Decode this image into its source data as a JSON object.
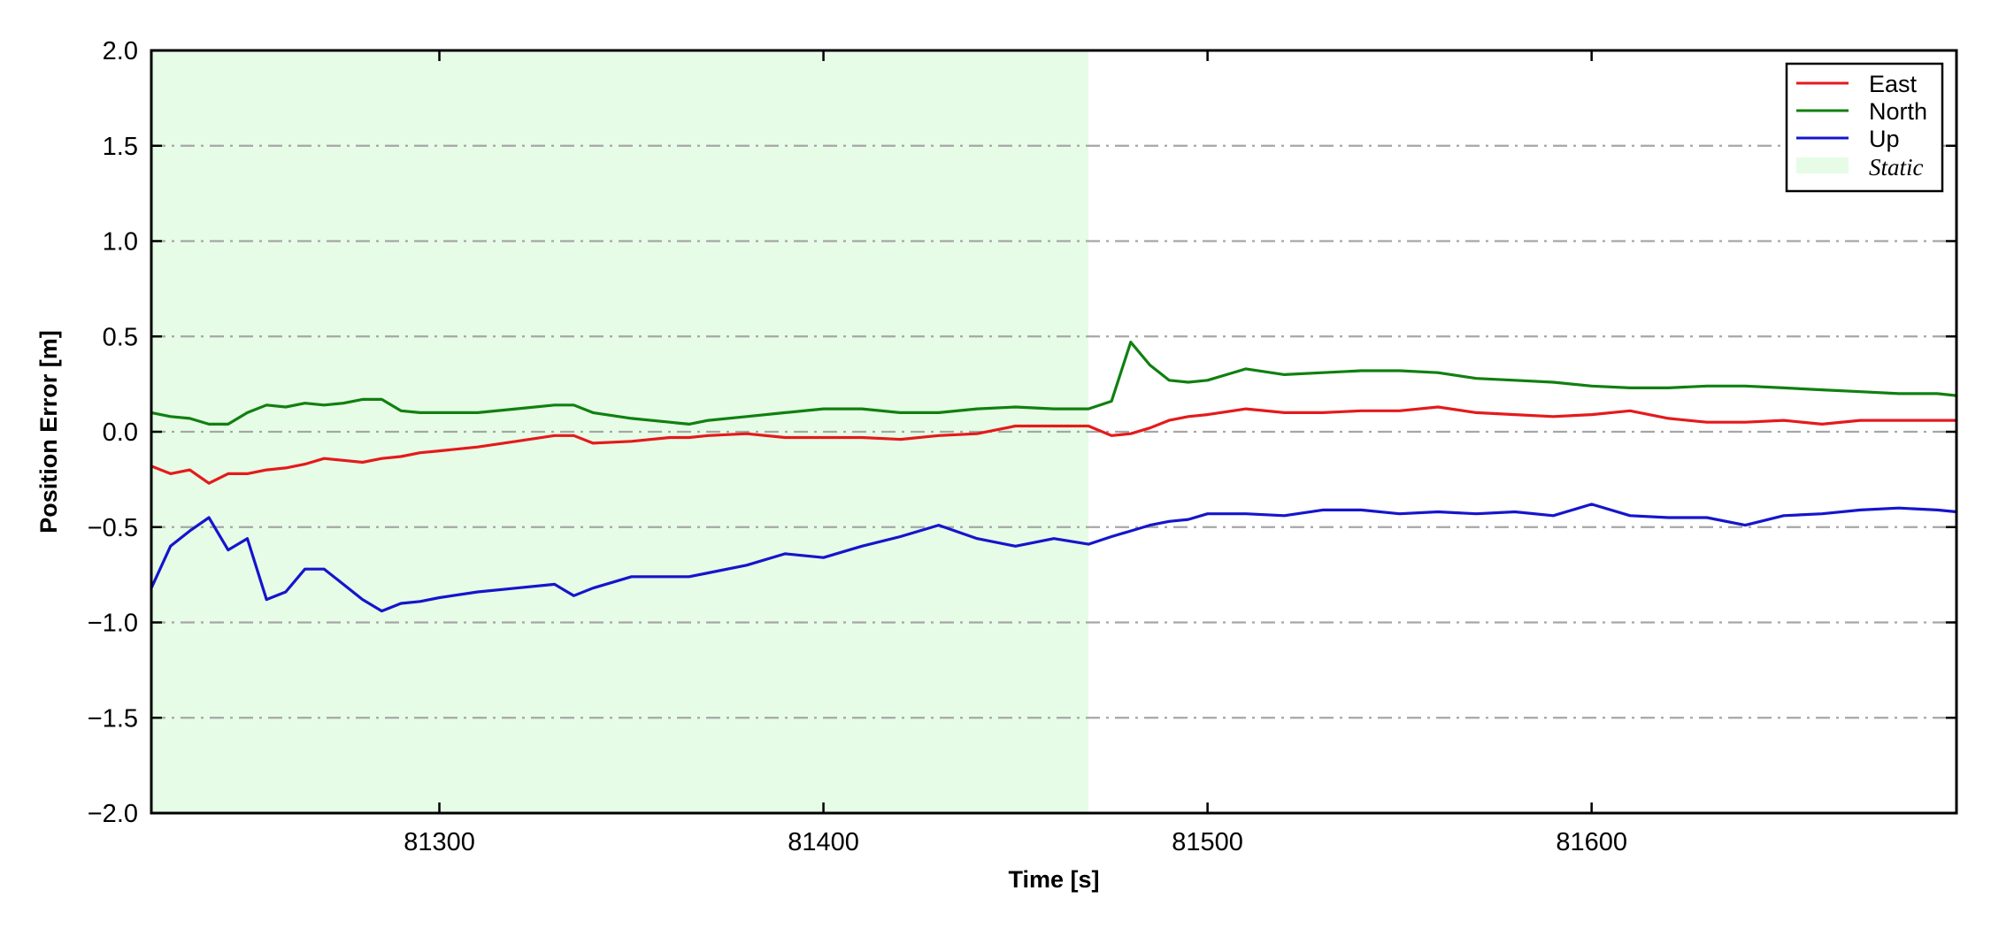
{
  "chart_data": {
    "type": "line",
    "title": "",
    "xlabel": "Time [s]",
    "ylabel": "Position Error [m]",
    "xlim": [
      81225,
      81695
    ],
    "ylim": [
      -2.0,
      2.0
    ],
    "xticks": [
      81300,
      81400,
      81500,
      81600
    ],
    "xtick_labels": [
      "81300",
      "81400",
      "81500",
      "81600"
    ],
    "yticks": [
      -2.0,
      -1.5,
      -1.0,
      -0.5,
      0.0,
      0.5,
      1.0,
      1.5,
      2.0
    ],
    "ytick_labels": [
      "−2.0",
      "−1.5",
      "−1.0",
      "−0.5",
      "0.0",
      "0.5",
      "1.0",
      "1.5",
      "2.0"
    ],
    "grid": "horizontal dash-dot",
    "legend_position": "top-right",
    "static_region": {
      "name": "Static",
      "x_start": 81225,
      "x_end": 81469,
      "color": "#e6fce6"
    },
    "x": [
      81225,
      81230,
      81235,
      81240,
      81245,
      81250,
      81255,
      81260,
      81265,
      81270,
      81275,
      81280,
      81285,
      81290,
      81295,
      81300,
      81310,
      81320,
      81330,
      81335,
      81340,
      81350,
      81360,
      81365,
      81370,
      81380,
      81390,
      81400,
      81410,
      81420,
      81430,
      81440,
      81450,
      81460,
      81469,
      81475,
      81480,
      81485,
      81490,
      81495,
      81500,
      81510,
      81520,
      81530,
      81540,
      81550,
      81560,
      81570,
      81580,
      81590,
      81600,
      81610,
      81620,
      81630,
      81640,
      81650,
      81660,
      81670,
      81680,
      81690,
      81695
    ],
    "series": [
      {
        "name": "East",
        "color": "#e41a1c",
        "values": [
          -0.18,
          -0.22,
          -0.2,
          -0.27,
          -0.22,
          -0.22,
          -0.2,
          -0.19,
          -0.17,
          -0.14,
          -0.15,
          -0.16,
          -0.14,
          -0.13,
          -0.11,
          -0.1,
          -0.08,
          -0.05,
          -0.02,
          -0.02,
          -0.06,
          -0.05,
          -0.03,
          -0.03,
          -0.02,
          -0.01,
          -0.03,
          -0.03,
          -0.03,
          -0.04,
          -0.02,
          -0.01,
          0.03,
          0.03,
          0.03,
          -0.02,
          -0.01,
          0.02,
          0.06,
          0.08,
          0.09,
          0.12,
          0.1,
          0.1,
          0.11,
          0.11,
          0.13,
          0.1,
          0.09,
          0.08,
          0.09,
          0.11,
          0.07,
          0.05,
          0.05,
          0.06,
          0.04,
          0.06,
          0.06,
          0.06,
          0.06
        ]
      },
      {
        "name": "North",
        "color": "#108010",
        "values": [
          0.1,
          0.08,
          0.07,
          0.04,
          0.04,
          0.1,
          0.14,
          0.13,
          0.15,
          0.14,
          0.15,
          0.17,
          0.17,
          0.11,
          0.1,
          0.1,
          0.1,
          0.12,
          0.14,
          0.14,
          0.1,
          0.07,
          0.05,
          0.04,
          0.06,
          0.08,
          0.1,
          0.12,
          0.12,
          0.1,
          0.1,
          0.12,
          0.13,
          0.12,
          0.12,
          0.16,
          0.47,
          0.35,
          0.27,
          0.26,
          0.27,
          0.33,
          0.3,
          0.31,
          0.32,
          0.32,
          0.31,
          0.28,
          0.27,
          0.26,
          0.24,
          0.23,
          0.23,
          0.24,
          0.24,
          0.23,
          0.22,
          0.21,
          0.2,
          0.2,
          0.19
        ]
      },
      {
        "name": "Up",
        "color": "#1515cc",
        "values": [
          -0.82,
          -0.6,
          -0.52,
          -0.45,
          -0.62,
          -0.56,
          -0.88,
          -0.84,
          -0.72,
          -0.72,
          -0.8,
          -0.88,
          -0.94,
          -0.9,
          -0.89,
          -0.87,
          -0.84,
          -0.82,
          -0.8,
          -0.86,
          -0.82,
          -0.76,
          -0.76,
          -0.76,
          -0.74,
          -0.7,
          -0.64,
          -0.66,
          -0.6,
          -0.55,
          -0.49,
          -0.56,
          -0.6,
          -0.56,
          -0.59,
          -0.55,
          -0.52,
          -0.49,
          -0.47,
          -0.46,
          -0.43,
          -0.43,
          -0.44,
          -0.41,
          -0.41,
          -0.43,
          -0.42,
          -0.43,
          -0.42,
          -0.44,
          -0.38,
          -0.44,
          -0.45,
          -0.45,
          -0.49,
          -0.44,
          -0.43,
          -0.41,
          -0.4,
          -0.41,
          -0.42
        ]
      }
    ]
  }
}
